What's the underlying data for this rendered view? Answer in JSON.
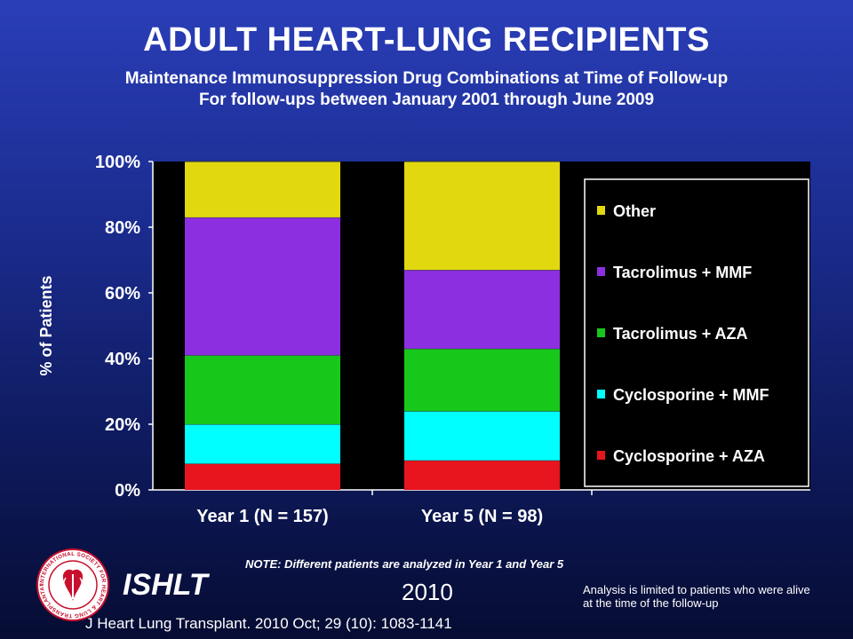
{
  "header": {
    "title": "ADULT HEART-LUNG RECIPIENTS",
    "subtitle_line1": "Maintenance Immunosuppression Drug Combinations at Time of Follow-up",
    "subtitle_line2": "For follow-ups between January 2001 through June 2009"
  },
  "chart_data": {
    "type": "bar",
    "stacked": true,
    "categories": [
      "Year 1 (N = 157)",
      "Year 5 (N = 98)"
    ],
    "ylabel": "% of Patients",
    "ylim": [
      0,
      100
    ],
    "yticks": [
      "0%",
      "20%",
      "40%",
      "60%",
      "80%",
      "100%"
    ],
    "legend_position": "right",
    "series": [
      {
        "name": "Cyclosporine + AZA",
        "color": "#e8141e",
        "values": [
          8,
          9
        ]
      },
      {
        "name": "Cyclosporine + MMF",
        "color": "#00ffff",
        "values": [
          12,
          15
        ]
      },
      {
        "name": "Tacrolimus + AZA",
        "color": "#17c81b",
        "values": [
          21,
          19
        ]
      },
      {
        "name": "Tacrolimus + MMF",
        "color": "#8b2fe0",
        "values": [
          42,
          24
        ]
      },
      {
        "name": "Other",
        "color": "#e2d80f",
        "values": [
          17,
          33
        ]
      }
    ]
  },
  "footer": {
    "note": "NOTE: Different patients are analyzed in Year 1 and Year 5",
    "org": "ISHLT",
    "year": "2010",
    "limit_note": "Analysis is limited to patients who were alive at the time of the follow-up",
    "citation": "J Heart Lung Transplant. 2010 Oct; 29 (10): 1083-1141"
  },
  "logo": {
    "icon": "ishlt-seal-icon",
    "ring_text": "INTERNATIONAL SOCIETY FOR HEART & LUNG TRANSPLANTATION"
  }
}
